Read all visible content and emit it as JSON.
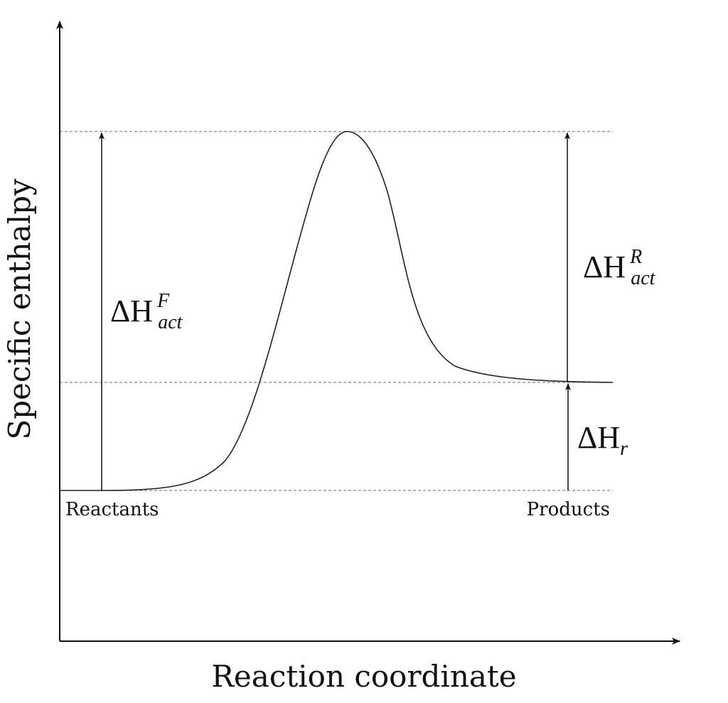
{
  "axes": {
    "x_label": "Reaction coordinate",
    "y_label": "Specific enthalpy"
  },
  "states": {
    "reactants_label": "Reactants",
    "products_label": "Products"
  },
  "annotations": {
    "forward_activation": {
      "symbol": "ΔH",
      "superscript": "F",
      "subscript": "act"
    },
    "reverse_activation": {
      "symbol": "ΔH",
      "superscript": "R",
      "subscript": "act"
    },
    "reaction_enthalpy": {
      "symbol": "ΔH",
      "subscript": "r"
    }
  },
  "colors": {
    "line": "#222222",
    "dashed": "#888888",
    "text": "#111111"
  }
}
